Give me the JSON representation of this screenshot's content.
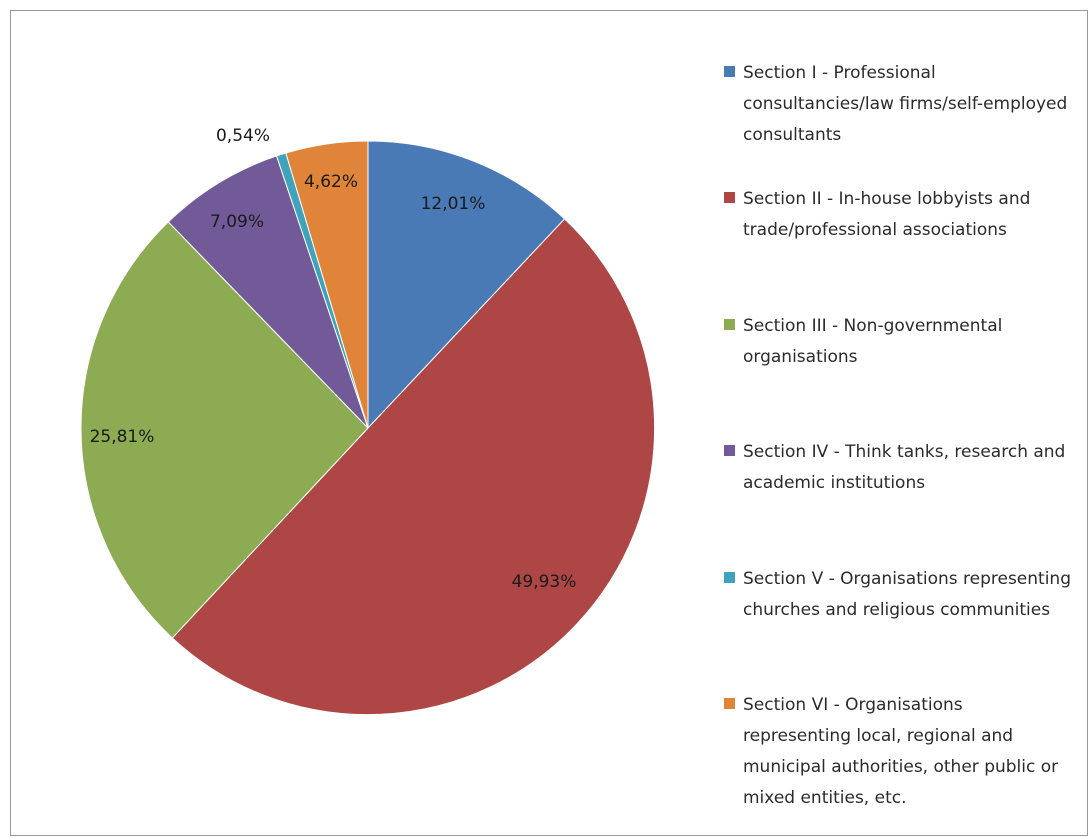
{
  "chart_data": {
    "type": "pie",
    "title": "",
    "legend_position": "right",
    "slices": [
      {
        "label": "Section I - Professional consultancies/law firms/self-employed consultants",
        "value": 12.01,
        "value_label": "12,01%",
        "color": "#4a7ab5"
      },
      {
        "label": "Section II - In-house lobbyists and trade/professional associations",
        "value": 49.93,
        "value_label": "49,93%",
        "color": "#ad4644"
      },
      {
        "label": "Section III - Non-governmental organisations",
        "value": 25.81,
        "value_label": "25,81%",
        "color": "#8cab52"
      },
      {
        "label": "Section IV - Think tanks, research and academic institutions",
        "value": 7.09,
        "value_label": "7,09%",
        "color": "#725a98"
      },
      {
        "label": "Section V - Organisations representing churches and religious communities",
        "value": 0.54,
        "value_label": "0,54%",
        "color": "#3fa3bd"
      },
      {
        "label": "Section VI - Organisations representing local, regional and municipal authorities, other public or mixed entities, etc.",
        "value": 4.62,
        "value_label": "4,62%",
        "color": "#e0843a"
      }
    ]
  }
}
